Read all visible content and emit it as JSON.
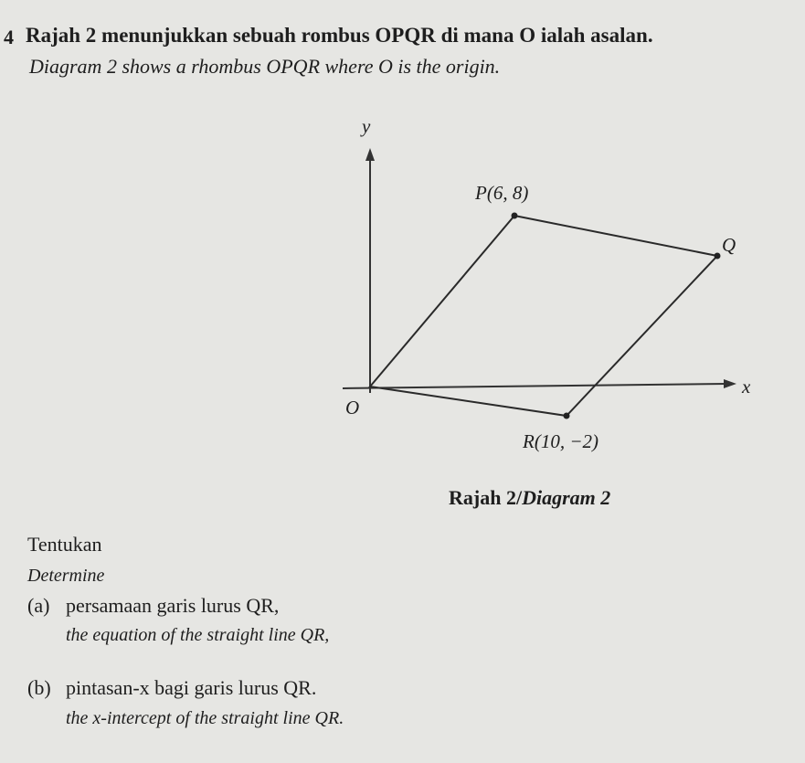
{
  "question": {
    "number": "4",
    "malay": "Rajah 2 menunjukkan sebuah rombus OPQR di mana O ialah asalan.",
    "english": "Diagram 2 shows a rhombus OPQR where O is the origin."
  },
  "diagram": {
    "y_axis": "y",
    "x_axis": "x",
    "origin": "O",
    "points": [
      {
        "label": "P(6, 8)"
      },
      {
        "label": "Q"
      },
      {
        "label": "R(10, −2)"
      }
    ],
    "caption_malay": "Rajah 2/",
    "caption_english": "Diagram 2"
  },
  "instruction": {
    "malay": "Tentukan",
    "english": "Determine"
  },
  "parts": [
    {
      "letter": "(a)",
      "malay": "persamaan garis lurus QR,",
      "english": "the equation of the straight line QR,"
    },
    {
      "letter": "(b)",
      "malay": "pintasan-x bagi garis lurus QR.",
      "english": "the x-intercept of the straight line QR."
    }
  ]
}
